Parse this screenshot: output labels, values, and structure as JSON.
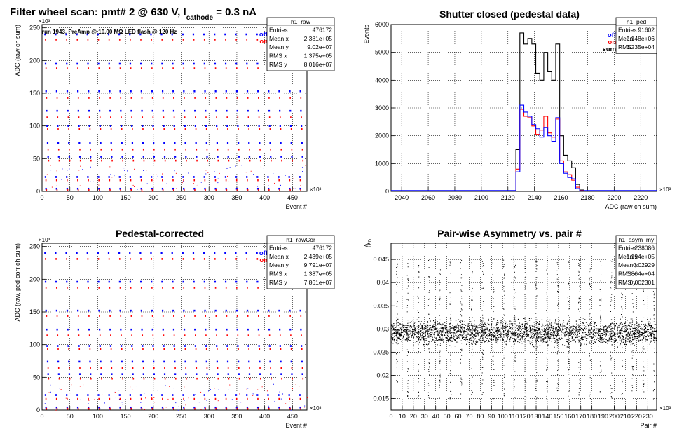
{
  "colors": {
    "off": "#0000ff",
    "on": "#ff0000",
    "sum": "#000000",
    "grid": "#000000",
    "frame": "#000000",
    "background": "#ffffff"
  },
  "panels": [
    {
      "key": "raw",
      "title": "Filter wheel scan: pmt#   2 @   630 V, I",
      "title_sub": "cathode",
      "title_tail": " = 0.3 nA",
      "note": "run 1943, PreAmp @ 10.00 MΩ LED flash @  120 Hz",
      "xlabel": "Event #",
      "ylabel": "ADC (raw ch sum)",
      "xexp": "×10³",
      "yexp": "×10³",
      "xticks": [
        "0",
        "50",
        "100",
        "150",
        "200",
        "250",
        "300",
        "350",
        "400",
        "450"
      ],
      "yticks": [
        "0",
        "50",
        "100",
        "150",
        "200",
        "250"
      ],
      "xlim": [
        0,
        476
      ],
      "ylim": [
        0,
        255
      ],
      "legend": [
        {
          "label": "off",
          "color": "#0000ff"
        },
        {
          "label": "on",
          "color": "#ff0000"
        }
      ],
      "stats": {
        "name": "h1_raw",
        "rows": [
          [
            "Entries",
            "476172"
          ],
          [
            "Mean x",
            "2.381e+05"
          ],
          [
            "Mean y",
            "9.02e+07"
          ],
          [
            "RMS x",
            "1.375e+05"
          ],
          [
            "RMS y",
            "8.016e+07"
          ]
        ]
      }
    },
    {
      "key": "ped",
      "title": "Shutter closed (pedestal data)",
      "xlabel": "ADC (raw ch sum)",
      "ylabel": "Events",
      "xexp": "×10³",
      "xticks": [
        "2040",
        "2060",
        "2080",
        "2100",
        "2120",
        "2140",
        "2160",
        "2180",
        "2200",
        "2220"
      ],
      "yticks": [
        "0",
        "1000",
        "2000",
        "3000",
        "4000",
        "5000",
        "6000"
      ],
      "xlim": [
        2032,
        2232
      ],
      "ylim": [
        0,
        6000
      ],
      "legend": [
        {
          "label": "off",
          "color": "#0000ff"
        },
        {
          "label": "on",
          "color": "#ff0000"
        },
        {
          "label": "sum",
          "color": "#000000"
        }
      ],
      "stats": {
        "name": "h1_ped",
        "rows": [
          [
            "Entries",
            "91602"
          ],
          [
            "Mean",
            "2.148e+06"
          ],
          [
            "RMS",
            "1.235e+04"
          ]
        ]
      }
    },
    {
      "key": "rawCor",
      "title": "Pedestal-corrected",
      "xlabel": "Event #",
      "ylabel": "ADC (raw, ped-corr ch sum)",
      "xexp": "×10³",
      "yexp": "×10³",
      "xticks": [
        "0",
        "50",
        "100",
        "150",
        "200",
        "250",
        "300",
        "350",
        "400",
        "450"
      ],
      "yticks": [
        "0",
        "50",
        "100",
        "150",
        "200",
        "250"
      ],
      "xlim": [
        0,
        476
      ],
      "ylim": [
        0,
        255
      ],
      "legend": [
        {
          "label": "off",
          "color": "#0000ff"
        },
        {
          "label": "on",
          "color": "#ff0000"
        }
      ],
      "stats": {
        "name": "h1_rawCor",
        "rows": [
          [
            "Entries",
            "476172"
          ],
          [
            "Mean x",
            "2.439e+05"
          ],
          [
            "Mean y",
            "9.791e+07"
          ],
          [
            "RMS x",
            "1.387e+05"
          ],
          [
            "RMS y",
            "7.861e+07"
          ]
        ]
      }
    },
    {
      "key": "asym",
      "title": "Pair-wise Asymmetry vs. pair #",
      "xlabel": "Pair #",
      "ylabel": "A",
      "ylabel_sub": "LED",
      "xexp": "×10³",
      "xticks": [
        "0",
        "10",
        "20",
        "30",
        "40",
        "50",
        "60",
        "70",
        "80",
        "90",
        "100",
        "110",
        "120",
        "130",
        "140",
        "150",
        "160",
        "170",
        "180",
        "190",
        "200",
        "210",
        "220",
        "230"
      ],
      "yticks": [
        "0.015",
        "0.02",
        "0.025",
        "0.03",
        "0.035",
        "0.04",
        "0.045"
      ],
      "xlim": [
        0,
        238
      ],
      "ylim": [
        0.0125,
        0.0485
      ],
      "stats": {
        "name": "h1_asym_my",
        "rows": [
          [
            "Entries",
            "238086"
          ],
          [
            "Mean x",
            "1.194e+05"
          ],
          [
            "Mean y",
            "0.02929"
          ],
          [
            "RMS x",
            "6.864e+04"
          ],
          [
            "RMS y",
            "0.002301"
          ]
        ]
      }
    }
  ],
  "chart_data": [
    {
      "type": "scatter",
      "title": "Filter wheel scan: pmt#   2 @   630 V, I cathode = 0.3 nA",
      "xlabel": "Event # (×10³)",
      "ylabel": "ADC (raw ch sum) (×10³)",
      "xlim": [
        0,
        476
      ],
      "ylim": [
        0,
        255
      ],
      "grid": true,
      "legend": "top-right",
      "step_x_period": 19.04,
      "series": [
        {
          "name": "off",
          "levels": [
            240,
            195,
            153,
            123,
            100,
            74,
            53,
            22,
            4
          ]
        },
        {
          "name": "on",
          "levels": [
            232,
            188,
            143,
            113,
            95,
            64,
            47,
            17,
            2
          ]
        }
      ]
    },
    {
      "type": "bar",
      "title": "Shutter closed (pedestal data)",
      "xlabel": "ADC (raw ch sum) (×10³)",
      "ylabel": "Events",
      "xlim": [
        2032,
        2232
      ],
      "ylim": [
        0,
        6000
      ],
      "grid": true,
      "legend": "top-right",
      "bin_edges": [
        2126,
        2129,
        2132,
        2135,
        2138,
        2141,
        2144,
        2147,
        2150,
        2153,
        2156,
        2159,
        2162,
        2165,
        2168,
        2171,
        2174,
        2177
      ],
      "series": [
        {
          "name": "sum",
          "values": [
            1500,
            5700,
            5300,
            5500,
            5300,
            4250,
            4000,
            5000,
            4300,
            4000,
            5300,
            2000,
            1300,
            1100,
            850,
            250,
            50
          ]
        },
        {
          "name": "on",
          "values": [
            800,
            2950,
            2700,
            2650,
            2350,
            2050,
            2200,
            2700,
            2100,
            1950,
            2600,
            1100,
            700,
            600,
            400,
            150,
            30
          ]
        },
        {
          "name": "off",
          "values": [
            700,
            3100,
            2850,
            2700,
            2400,
            2250,
            1950,
            2300,
            2000,
            1800,
            2650,
            1000,
            650,
            500,
            450,
            100,
            20
          ]
        }
      ]
    },
    {
      "type": "scatter",
      "title": "Pedestal-corrected",
      "xlabel": "Event # (×10³)",
      "ylabel": "ADC (raw, ped-corr ch sum) (×10³)",
      "xlim": [
        0,
        476
      ],
      "ylim": [
        0,
        255
      ],
      "grid": true,
      "legend": "top-right",
      "step_x_period": 19.04,
      "series": [
        {
          "name": "off",
          "levels": [
            240,
            196,
            152,
            123,
            98,
            74,
            55,
            23,
            4
          ]
        },
        {
          "name": "on",
          "levels": [
            231,
            187,
            144,
            114,
            93,
            64,
            48,
            17,
            2
          ]
        }
      ]
    },
    {
      "type": "scatter",
      "title": "Pair-wise Asymmetry vs. pair #",
      "xlabel": "Pair # (×10³)",
      "ylabel": "A LED",
      "xlim": [
        0,
        238
      ],
      "ylim": [
        0.0125,
        0.0485
      ],
      "grid": true,
      "band_center": 0.0293,
      "band_halfwidth": 0.002,
      "spike_period_x": 9.6,
      "spike_range": [
        0.015,
        0.045
      ]
    }
  ]
}
